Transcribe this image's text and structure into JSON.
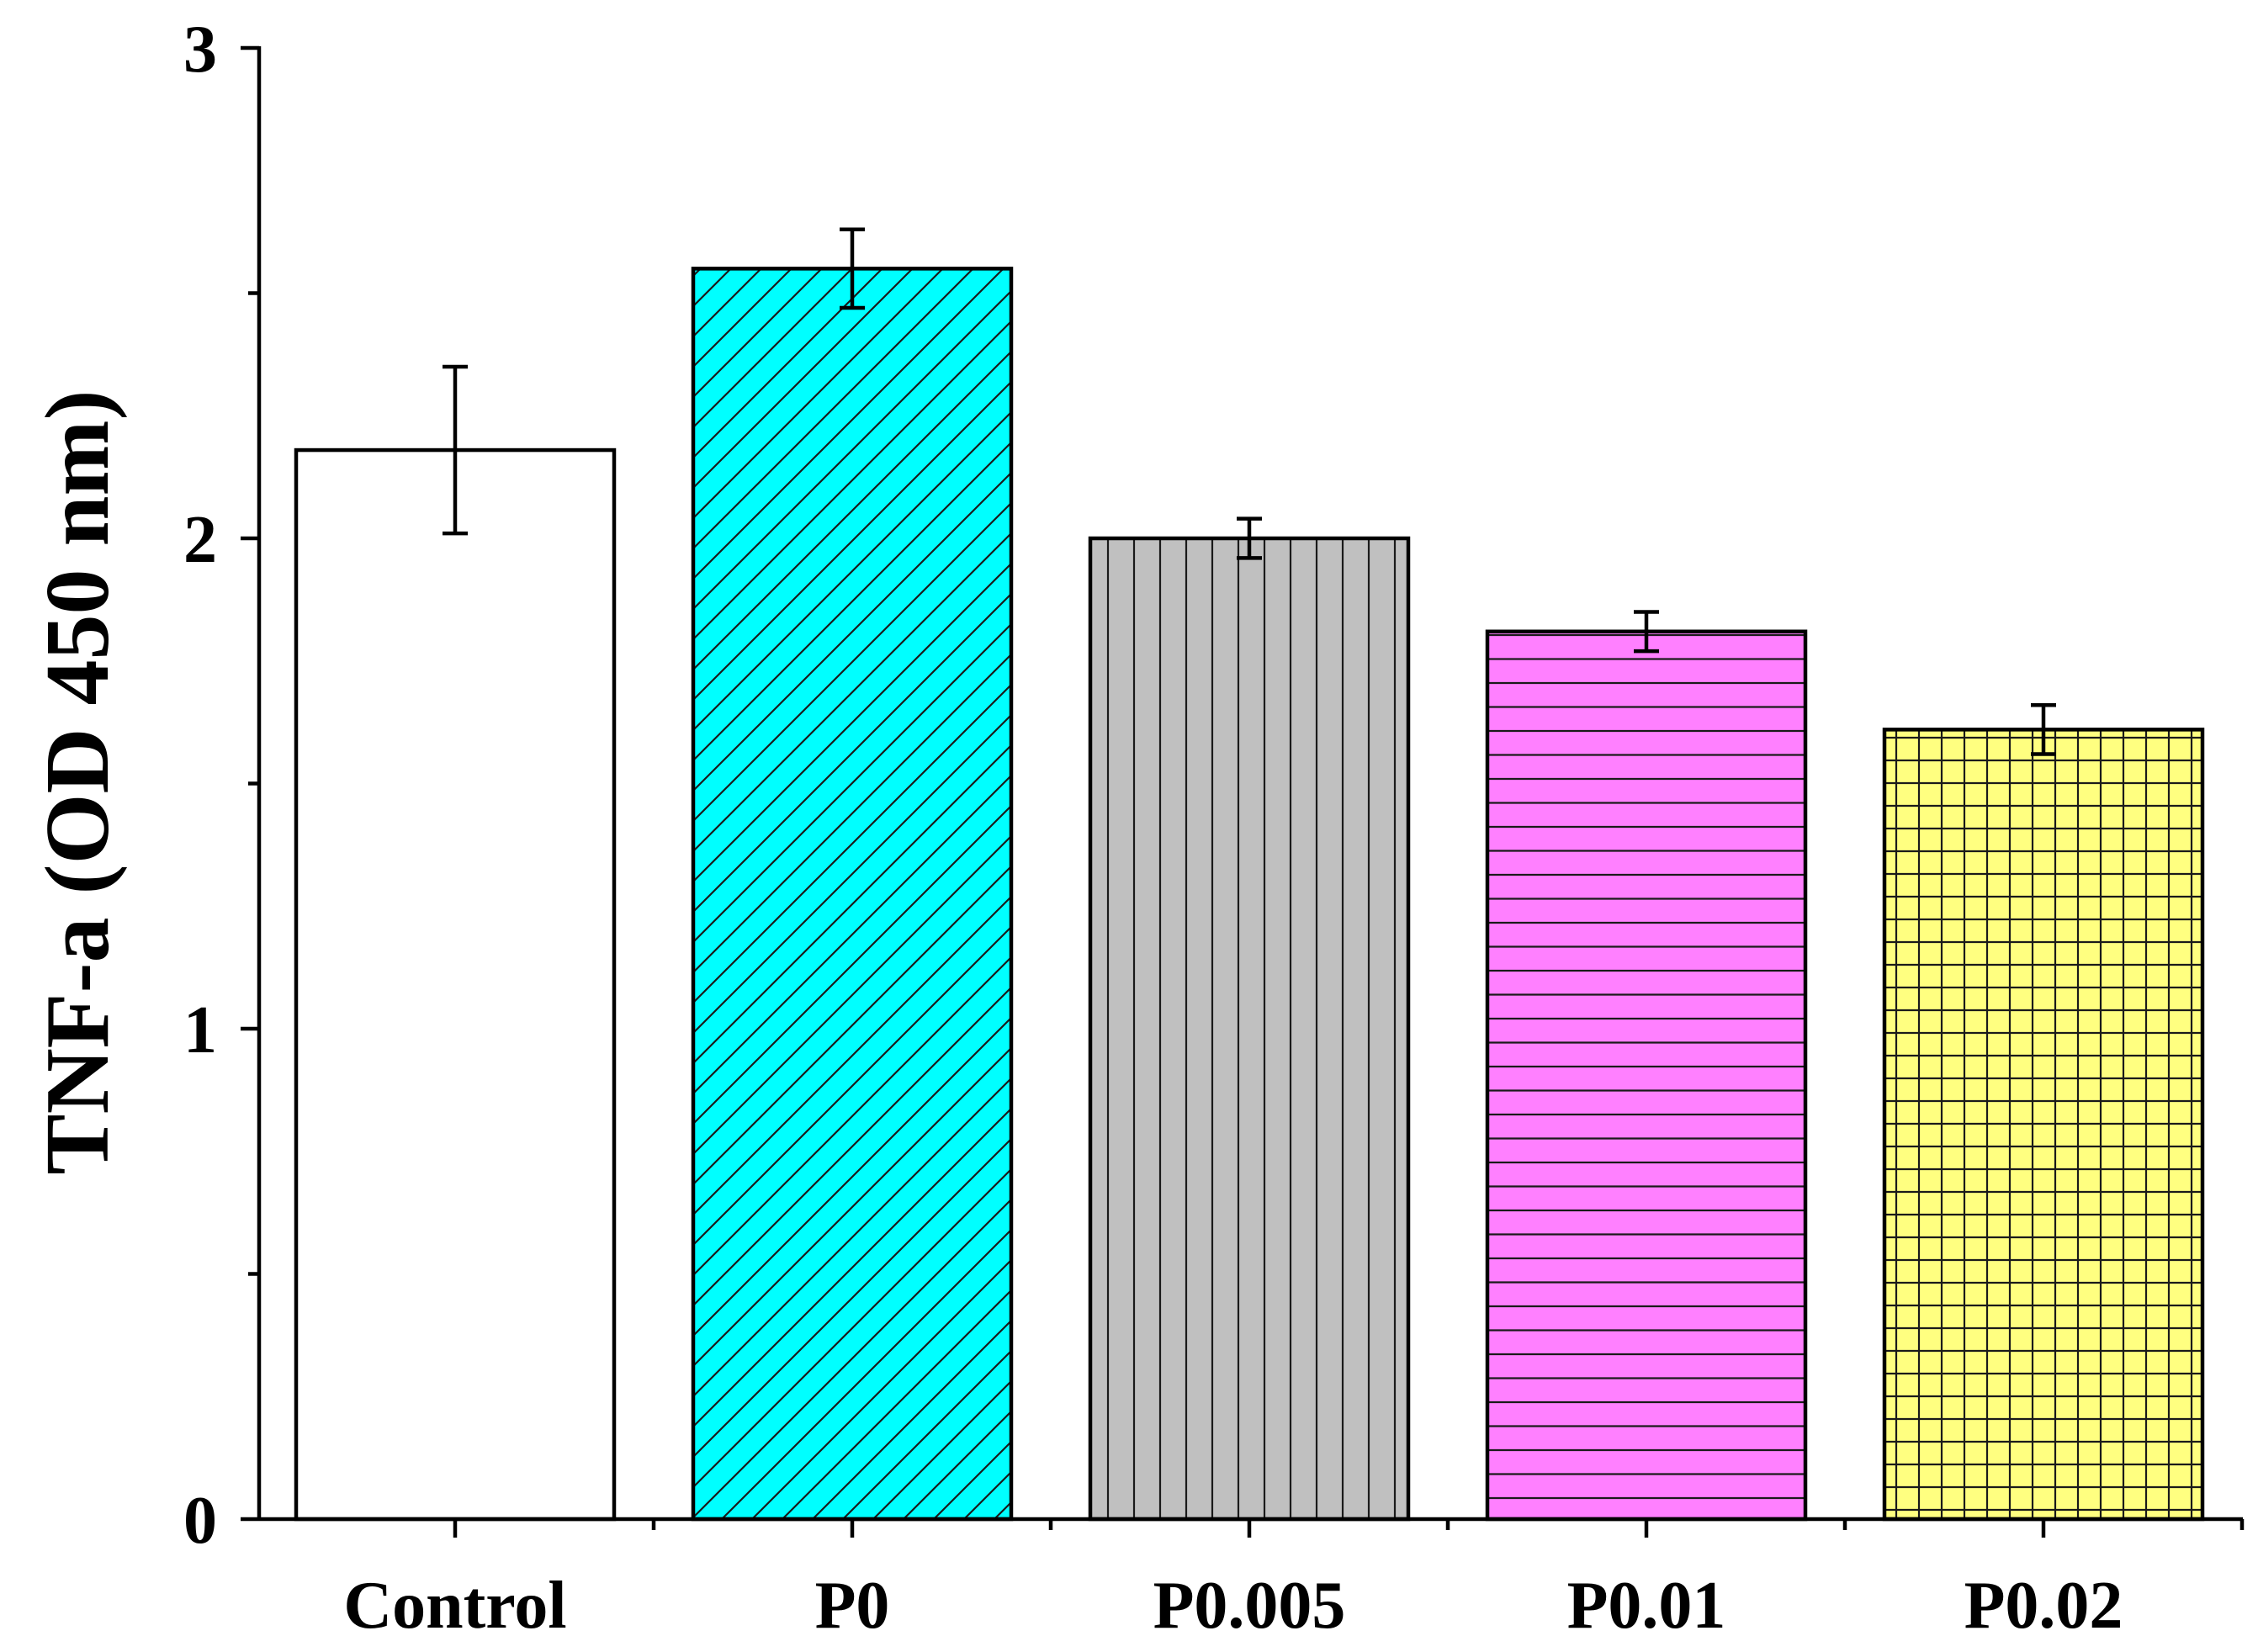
{
  "chart_data": {
    "type": "bar",
    "title": "",
    "xlabel": "",
    "ylabel": "TNF-a (OD 450 nm)",
    "ylim": [
      0,
      3
    ],
    "yticks": [
      0,
      1,
      2,
      3
    ],
    "yticks_minor": [
      0.5,
      1.5,
      2.5
    ],
    "grid": false,
    "categories": [
      "Control",
      "P0",
      "P0.005",
      "P0.01",
      "P0.02"
    ],
    "values": [
      2.18,
      2.55,
      2.0,
      1.81,
      1.61
    ],
    "errors": [
      0.17,
      0.08,
      0.04,
      0.04,
      0.05
    ],
    "fills": [
      "#ffffff",
      "#00ffff",
      "#c0c0c0",
      "#ff80ff",
      "#ffff80"
    ],
    "patterns": [
      "none",
      "diagonal",
      "vertical",
      "horizontal",
      "grid"
    ],
    "outline_color": "#000000"
  }
}
